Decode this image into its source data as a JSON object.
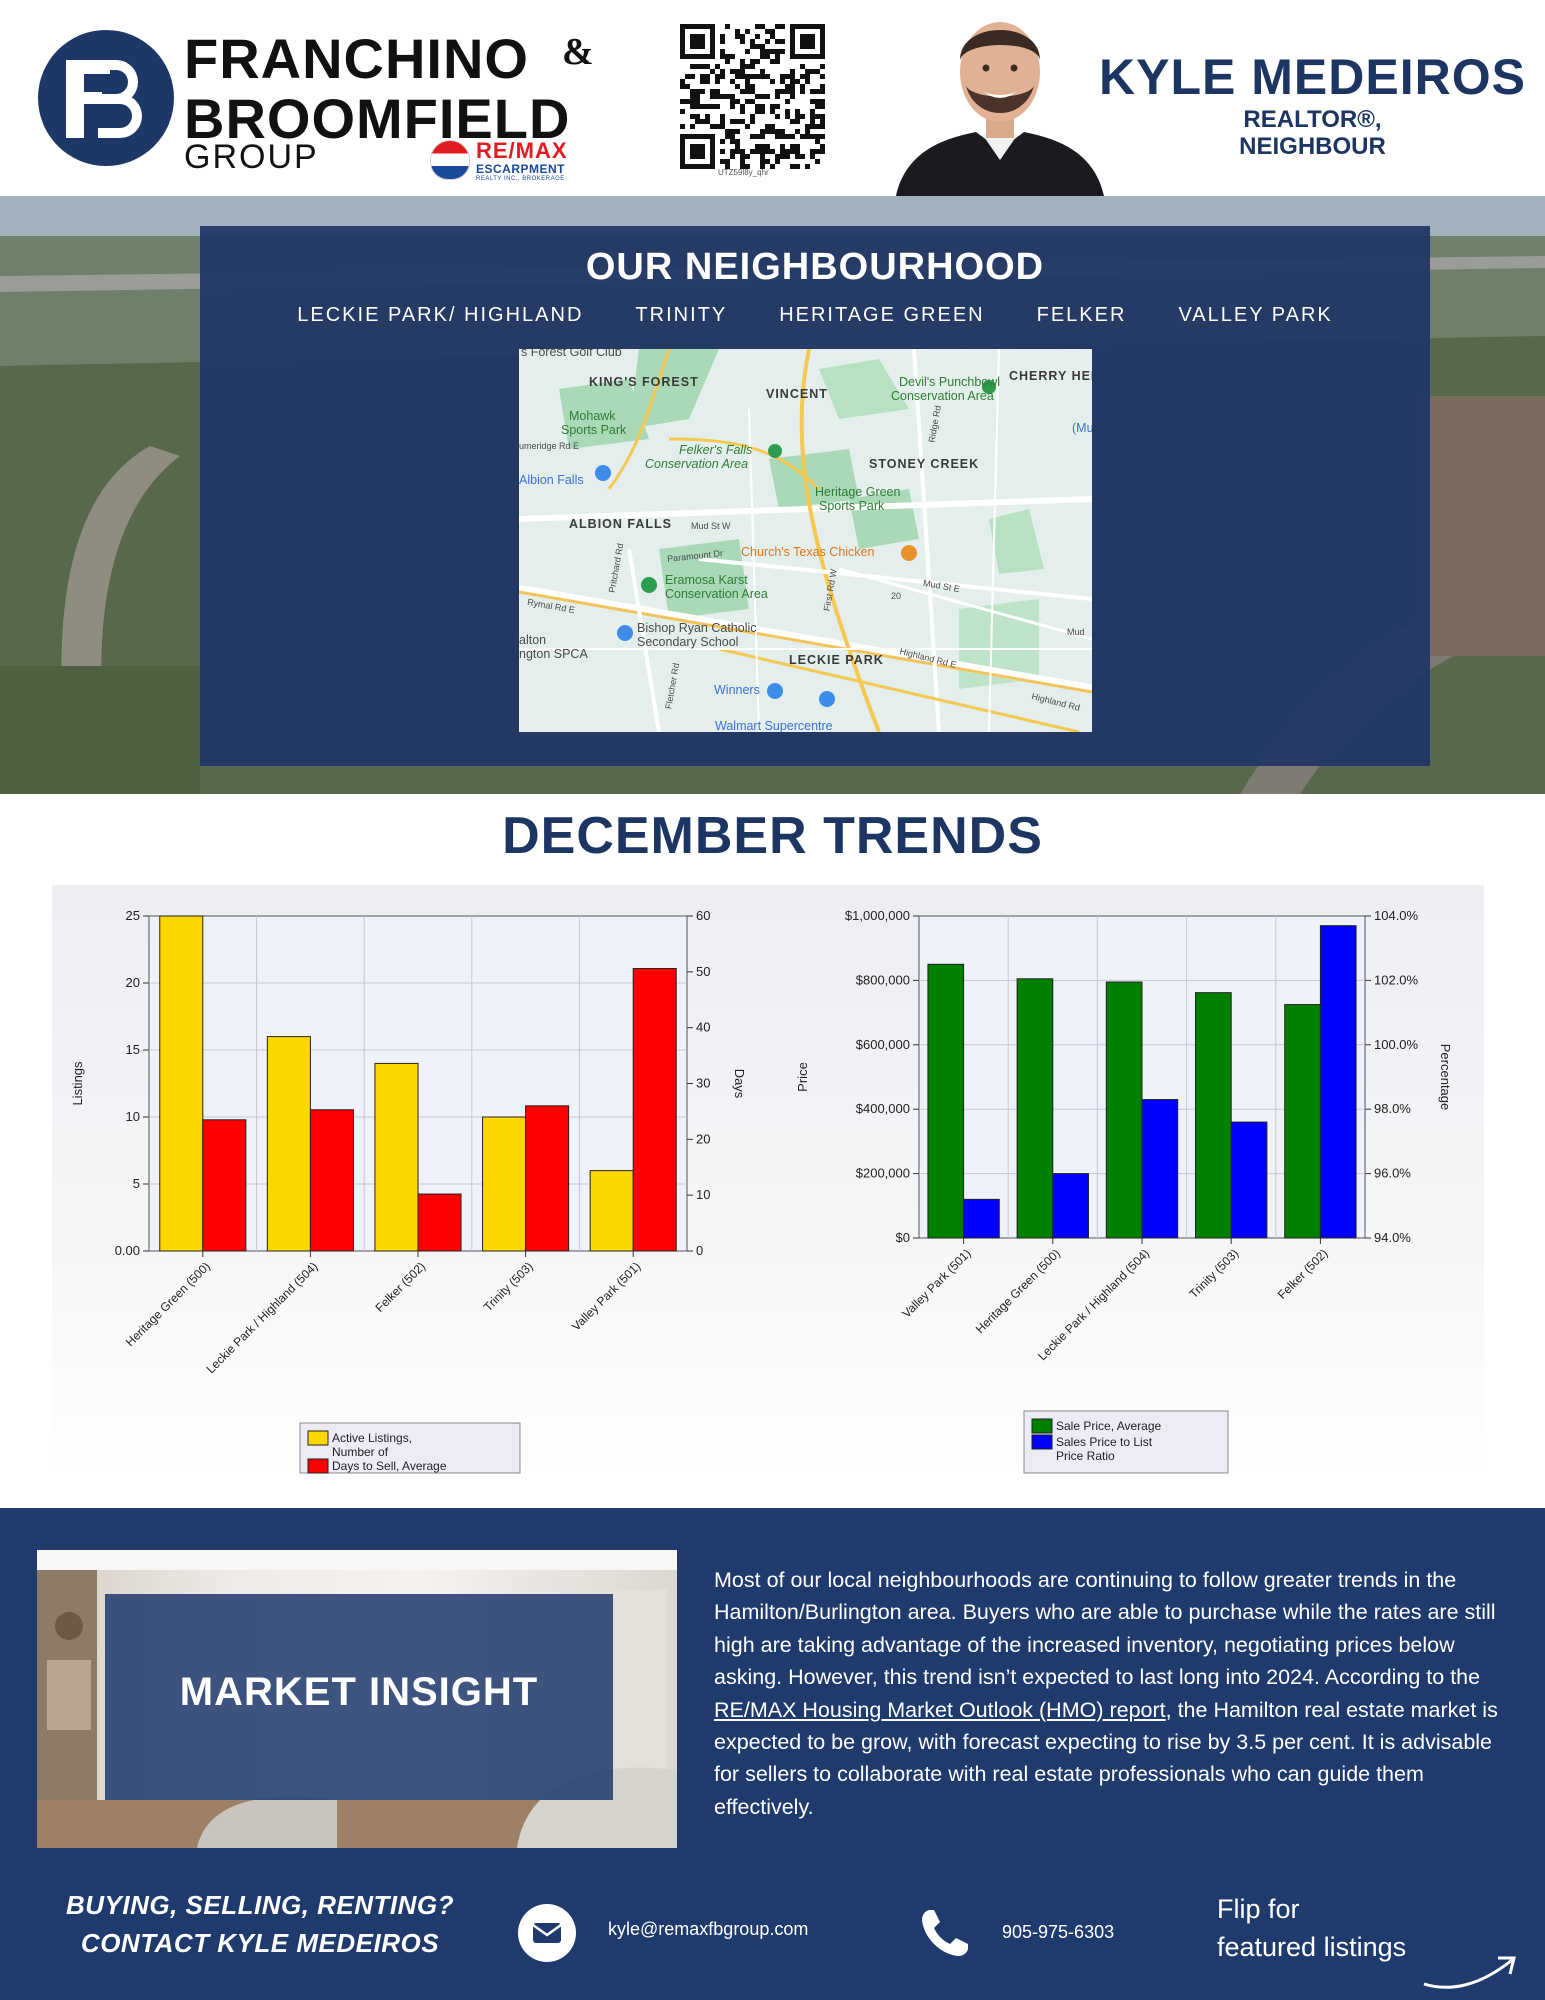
{
  "header": {
    "brand_line1": "FRANCHINO",
    "brand_amp": "&",
    "brand_line2": "BROOMFIELD",
    "brand_line3": "GROUP",
    "brokerage_name": "RE/MAX",
    "brokerage_sub": "ESCARPMENT",
    "brokerage_tiny": "REALTY INC., BROKERAGE",
    "qr_caption": "UTZ59l8y_qhr",
    "agent_name": "KYLE MEDEIROS",
    "agent_title_1": "REALTOR®,",
    "agent_title_2": "NEIGHBOUR"
  },
  "hero": {
    "title": "OUR NEIGHBOURHOOD",
    "neighbourhoods": [
      "LECKIE PARK/ HIGHLAND",
      "TRINITY",
      "HERITAGE GREEN",
      "FELKER",
      "VALLEY PARK"
    ],
    "map_labels": {
      "golf": "s Forest Golf Club",
      "kings_forest": "KING'S FOREST",
      "vincent": "VINCENT",
      "punchbowl": "Devil's Punchbowl",
      "punchbowl_2": "Conservation Area",
      "cherry": "CHERRY HEI",
      "mohawk": "Mohawk",
      "mohawk_2": "Sports Park",
      "felkers_falls": "Felker's Falls",
      "felkers_falls_2": "Conservation Area",
      "stoney_creek": "STONEY CREEK",
      "albion_falls": "Albion Falls",
      "heritage_sports": "Heritage Green",
      "heritage_sports_2": "Sports Park",
      "albion_falls_area": "ALBION FALLS",
      "mud_st": "Mud St W",
      "paramount": "Paramount Dr",
      "churchs": "Church's Texas Chicken",
      "eramosa": "Eramosa Karst",
      "eramosa_2": "Conservation Area",
      "mud_st_e": "Mud St E",
      "rymal": "Rymal Rd E",
      "hamilton_spca": "alton",
      "hamilton_spca_2": "ngton SPCA",
      "bishop": "Bishop Ryan Catholic",
      "bishop_2": "Secondary School",
      "leckie": "LECKIE PARK",
      "highland_rd": "Highland Rd E",
      "winners": "Winners",
      "walmart": "Walmart Supercentre",
      "ridge_rd": "Ridge Rd",
      "first_rd": "First Rd W",
      "pritchard": "Pritchard Rd",
      "fletcher": "Fletcher Rd",
      "mu": "(Mu",
      "mud_right": "Mud",
      "highland_right": "Highland Rd",
      "route20": "20",
      "umeridge": "umeridge Rd E"
    }
  },
  "trends": {
    "title": "DECEMBER TRENDS"
  },
  "chart_data": [
    {
      "type": "bar",
      "categories": [
        "Heritage Green (500)",
        "Leckie Park / Highland (504)",
        "Felker (502)",
        "Trinity (503)",
        "Valley Park (501)"
      ],
      "series": [
        {
          "name": "Active Listings, Number of",
          "axis": "left",
          "values": [
            25,
            16,
            14,
            10,
            6
          ],
          "color": "#ffd700"
        },
        {
          "name": "Days to Sell, Average",
          "axis": "right",
          "values": [
            23.5,
            25.3,
            10.2,
            26,
            50.6
          ],
          "color": "#ff0000"
        }
      ],
      "ylabel": "Listings",
      "y2label": "Days",
      "ylim": [
        0,
        25
      ],
      "y2lim": [
        0,
        60
      ],
      "yticks": [
        "0.00",
        "5",
        "10",
        "15",
        "20",
        "25"
      ],
      "y2ticks": [
        "0",
        "10",
        "20",
        "30",
        "40",
        "50",
        "60"
      ],
      "grid": true,
      "legend": "bottom"
    },
    {
      "type": "bar",
      "categories": [
        "Valley Park (501)",
        "Heritage Green (500)",
        "Leckie Park / Highland (504)",
        "Trinity (503)",
        "Felker (502)"
      ],
      "series": [
        {
          "name": "Sale Price, Average",
          "axis": "left",
          "values": [
            850000,
            805000,
            795000,
            762000,
            725000
          ],
          "color": "#008000"
        },
        {
          "name": "Sales Price to List Price Ratio",
          "axis": "right",
          "values": [
            95.2,
            96.0,
            98.3,
            97.6,
            103.7
          ],
          "color": "#0000ff"
        }
      ],
      "ylabel": "Price",
      "y2label": "Percentage",
      "ylim": [
        0,
        1000000
      ],
      "y2lim": [
        94,
        104
      ],
      "yticks": [
        "$0",
        "$200,000",
        "$400,000",
        "$600,000",
        "$800,000",
        "$1,000,000"
      ],
      "y2ticks": [
        "94.0%",
        "96.0%",
        "98.0%",
        "100.0%",
        "102.0%",
        "104.0%"
      ],
      "grid": true,
      "legend": "bottom"
    }
  ],
  "insight": {
    "title": "MARKET INSIGHT",
    "text_before_link": "Most of our local neighbourhoods are continuing to follow greater trends in the Hamilton/Burlington area. Buyers who are able to purchase while the rates are still high are taking advantage of the increased inventory, negotiating prices below asking. However, this trend isn’t expected to last long into 2024. According to the ",
    "link_text": "RE/MAX Housing Market Outlook (HMO) report",
    "text_after_link": ", the Hamilton real estate market is expected to be grow, with forecast expecting to rise by 3.5 per cent. It is advisable for sellers to collaborate with real estate professionals who can guide them effectively."
  },
  "contact": {
    "cta_line1": "BUYING, SELLING, RENTING?",
    "cta_line2": "CONTACT KYLE MEDEIROS",
    "email": "kyle@remaxfbgroup.com",
    "phone": "905-975-6303",
    "flip_line1": "Flip for",
    "flip_line2": "featured listings",
    "icons": [
      "mail-icon",
      "phone-icon",
      "curved-arrow-icon"
    ]
  }
}
